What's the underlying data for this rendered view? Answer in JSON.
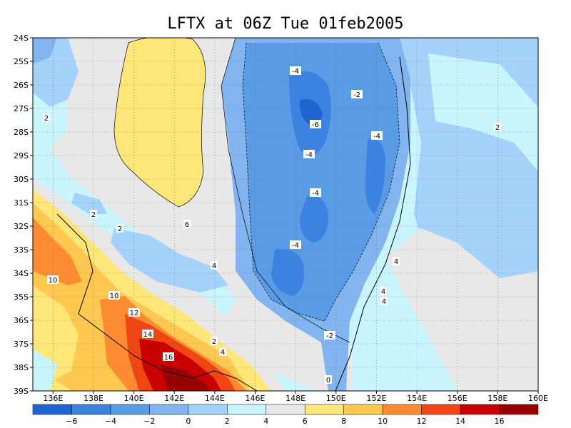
{
  "title": "LFTX at 06Z Tue 01feb2005",
  "map": {
    "lon_range": [
      135,
      160
    ],
    "lat_range": [
      -39,
      -24
    ],
    "x_ticks": [
      "136E",
      "138E",
      "140E",
      "142E",
      "144E",
      "146E",
      "148E",
      "150E",
      "152E",
      "154E",
      "156E",
      "158E",
      "160E"
    ],
    "y_ticks": [
      "24S",
      "25S",
      "26S",
      "27S",
      "28S",
      "29S",
      "30S",
      "31S",
      "32S",
      "33S",
      "34S",
      "35S",
      "36S",
      "37S",
      "38S",
      "39S"
    ],
    "grid": "dotted"
  },
  "colorbar": {
    "labels": [
      "-6",
      "-4",
      "-2",
      "0",
      "2",
      "4",
      "6",
      "8",
      "10",
      "12",
      "14",
      "16"
    ],
    "colors": [
      "#1e64d2",
      "#3c82e1",
      "#5a9be6",
      "#82b4f0",
      "#a5d2fa",
      "#c8f5ff",
      "#e8e8e8",
      "#ffe678",
      "#ffc850",
      "#ff8c32",
      "#f04614",
      "#c80000",
      "#960000"
    ]
  },
  "contour_labels": [
    {
      "text": "-4"
    },
    {
      "text": "-2"
    },
    {
      "text": "-6"
    },
    {
      "text": "-4"
    },
    {
      "text": "-4"
    },
    {
      "text": "-4"
    },
    {
      "text": "-4"
    },
    {
      "text": "-2"
    },
    {
      "text": "0"
    },
    {
      "text": "2"
    },
    {
      "text": "2"
    },
    {
      "text": "2"
    },
    {
      "text": "2"
    },
    {
      "text": "6"
    },
    {
      "text": "4"
    },
    {
      "text": "4"
    },
    {
      "text": "4"
    },
    {
      "text": "4"
    },
    {
      "text": "2"
    },
    {
      "text": "4"
    },
    {
      "text": "10"
    },
    {
      "text": "10"
    },
    {
      "text": "12"
    },
    {
      "text": "14"
    },
    {
      "text": "16"
    }
  ]
}
